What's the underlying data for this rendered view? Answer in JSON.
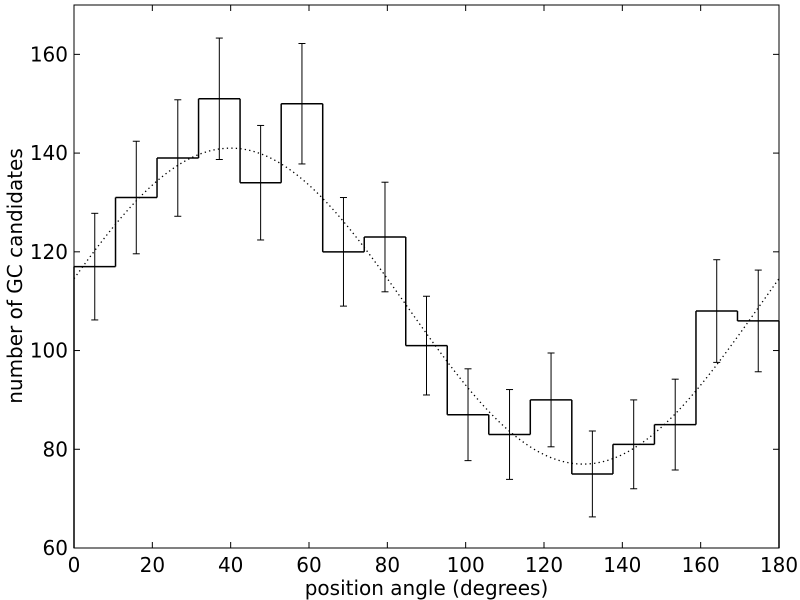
{
  "chart_data": {
    "type": "bar",
    "title": "",
    "xlabel": "position angle (degrees)",
    "ylabel": "number of GC candidates",
    "xlim": [
      0,
      180
    ],
    "ylim": [
      60,
      170
    ],
    "grid": false,
    "legend": "none",
    "x_ticks": [
      0,
      20,
      40,
      60,
      80,
      100,
      120,
      140,
      160,
      180
    ],
    "y_ticks": [
      60,
      80,
      100,
      120,
      140,
      160
    ],
    "x_tick_labels": [
      "0",
      "20",
      "40",
      "60",
      "80",
      "100",
      "120",
      "140",
      "160",
      "180"
    ],
    "y_tick_labels": [
      "60",
      "80",
      "100",
      "120",
      "140",
      "160"
    ],
    "bin_edges": [
      0,
      10.6,
      21.2,
      31.8,
      42.4,
      52.9,
      63.5,
      74.1,
      84.7,
      95.3,
      105.9,
      116.5,
      127.1,
      137.6,
      148.2,
      158.8,
      169.4,
      180
    ],
    "values": [
      117,
      131,
      139,
      151,
      134,
      150,
      120,
      123,
      101,
      87,
      83,
      90,
      75,
      81,
      85,
      108,
      106
    ],
    "errors": [
      10.8,
      11.4,
      11.8,
      12.3,
      11.6,
      12.2,
      11.0,
      11.1,
      10.0,
      9.3,
      9.1,
      9.5,
      8.7,
      9.0,
      9.2,
      10.4,
      10.3
    ],
    "fit": {
      "style": "dotted",
      "model": "sinusoid",
      "mean": 109,
      "amplitude": 32,
      "peak_angle": 40,
      "period": 180
    }
  },
  "colors": {
    "line": "#000000",
    "background": "#ffffff"
  }
}
